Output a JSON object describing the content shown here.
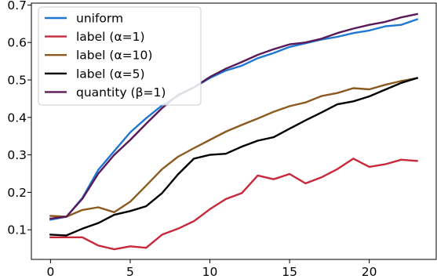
{
  "chart_data": {
    "type": "line",
    "title": "",
    "xlabel": "",
    "ylabel": "",
    "xlim": [
      -1.2,
      24.2
    ],
    "ylim": [
      0.021,
      0.705
    ],
    "xticks": [
      0,
      5,
      10,
      15,
      20
    ],
    "xtick_labels": [
      "0",
      "5",
      "10",
      "15",
      "20"
    ],
    "yticks": [
      0.1,
      0.2,
      0.3,
      0.4,
      0.5,
      0.6,
      0.7
    ],
    "ytick_labels": [
      "0.1",
      "0.2",
      "0.3",
      "0.4",
      "0.5",
      "0.6",
      "0.7"
    ],
    "grid": false,
    "legend_position": "top-left",
    "x": [
      0,
      1,
      2,
      3,
      4,
      5,
      6,
      7,
      8,
      9,
      10,
      11,
      12,
      13,
      14,
      15,
      16,
      17,
      18,
      19,
      20,
      21,
      22,
      23
    ],
    "series": [
      {
        "name": "uniform",
        "color": "#1f77d4",
        "values": [
          0.127,
          0.135,
          0.185,
          0.26,
          0.31,
          0.36,
          0.398,
          0.432,
          0.458,
          0.48,
          0.505,
          0.525,
          0.538,
          0.558,
          0.572,
          0.588,
          0.598,
          0.608,
          0.615,
          0.625,
          0.632,
          0.643,
          0.647,
          0.662
        ]
      },
      {
        "name": "label (α=1)",
        "color": "#c8283a",
        "values": [
          0.08,
          0.08,
          0.08,
          0.058,
          0.048,
          0.056,
          0.052,
          0.087,
          0.103,
          0.123,
          0.155,
          0.182,
          0.198,
          0.245,
          0.235,
          0.249,
          0.224,
          0.24,
          0.262,
          0.29,
          0.268,
          0.275,
          0.287,
          0.284
        ]
      },
      {
        "name": "label (α=10)",
        "color": "#8b5a1e",
        "values": [
          0.137,
          0.135,
          0.153,
          0.16,
          0.147,
          0.175,
          0.218,
          0.262,
          0.295,
          0.318,
          0.34,
          0.362,
          0.38,
          0.397,
          0.415,
          0.43,
          0.44,
          0.457,
          0.465,
          0.478,
          0.475,
          0.487,
          0.497,
          0.505
        ]
      },
      {
        "name": "label (α=5)",
        "color": "#000000",
        "values": [
          0.087,
          0.085,
          0.103,
          0.118,
          0.14,
          0.15,
          0.163,
          0.198,
          0.248,
          0.29,
          0.3,
          0.303,
          0.322,
          0.338,
          0.347,
          0.37,
          0.392,
          0.413,
          0.435,
          0.443,
          0.456,
          0.474,
          0.492,
          0.505
        ]
      },
      {
        "name": "quantity (β=1)",
        "color": "#5a1a57",
        "values": [
          0.13,
          0.135,
          0.183,
          0.25,
          0.3,
          0.34,
          0.383,
          0.425,
          0.46,
          0.48,
          0.508,
          0.53,
          0.548,
          0.567,
          0.582,
          0.595,
          0.6,
          0.61,
          0.625,
          0.637,
          0.647,
          0.655,
          0.667,
          0.676
        ]
      }
    ]
  }
}
